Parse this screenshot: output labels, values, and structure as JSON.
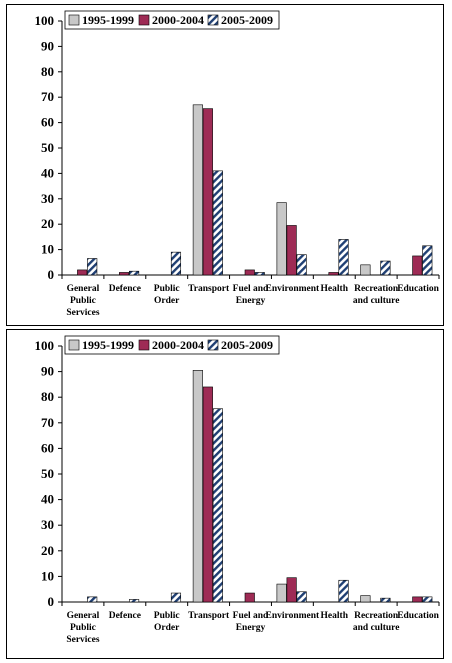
{
  "colors": {
    "series_1995": "#c8c8c8",
    "series_2000": "#9e2b55",
    "series_2005_stripe": "#1f3f73",
    "series_2005_bg": "#ffffff",
    "axis": "#000000"
  },
  "chart_data": [
    {
      "type": "bar",
      "title": "",
      "xlabel": "",
      "ylabel": "",
      "ylim": [
        0,
        100
      ],
      "yticks": [
        0,
        10,
        20,
        30,
        40,
        50,
        60,
        70,
        80,
        90,
        100
      ],
      "grid": false,
      "legend_position": "top-left",
      "categories": [
        [
          "General",
          "Public",
          "Services"
        ],
        [
          "Defence"
        ],
        [
          "Public",
          "Order"
        ],
        [
          "Transport"
        ],
        [
          "Fuel and",
          "Energy"
        ],
        [
          "Environment"
        ],
        [
          "Health"
        ],
        [
          "Recreation",
          "and culture"
        ],
        [
          "Education"
        ]
      ],
      "series": [
        {
          "name": "1995-1999",
          "values": [
            0,
            0,
            0,
            67,
            0,
            28.5,
            0,
            4,
            0
          ]
        },
        {
          "name": "2000-2004",
          "values": [
            2,
            1,
            0,
            65.5,
            2,
            19.5,
            1,
            0,
            7.5
          ]
        },
        {
          "name": "2005-2009",
          "values": [
            6.5,
            1.5,
            9,
            41,
            1,
            8,
            14,
            5.5,
            11.5
          ]
        }
      ]
    },
    {
      "type": "bar",
      "title": "",
      "xlabel": "",
      "ylabel": "",
      "ylim": [
        0,
        100
      ],
      "yticks": [
        0,
        10,
        20,
        30,
        40,
        50,
        60,
        70,
        80,
        90,
        100
      ],
      "grid": false,
      "legend_position": "top-left",
      "categories": [
        [
          "General",
          "Public",
          "Services"
        ],
        [
          "Defence"
        ],
        [
          "Public",
          "Order"
        ],
        [
          "Transport"
        ],
        [
          "Fuel and",
          "Energy"
        ],
        [
          "Environment"
        ],
        [
          "Health"
        ],
        [
          "Recreation",
          "and culture"
        ],
        [
          "Education"
        ]
      ],
      "series": [
        {
          "name": "1995-1999",
          "values": [
            0,
            0,
            0,
            90.5,
            0,
            7,
            0,
            2.5,
            0
          ]
        },
        {
          "name": "2000-2004",
          "values": [
            0,
            0,
            0,
            84,
            3.5,
            9.5,
            0,
            0,
            2
          ]
        },
        {
          "name": "2005-2009",
          "values": [
            2,
            1,
            3.5,
            75.5,
            0,
            4,
            8.5,
            1.5,
            2
          ]
        }
      ]
    }
  ]
}
